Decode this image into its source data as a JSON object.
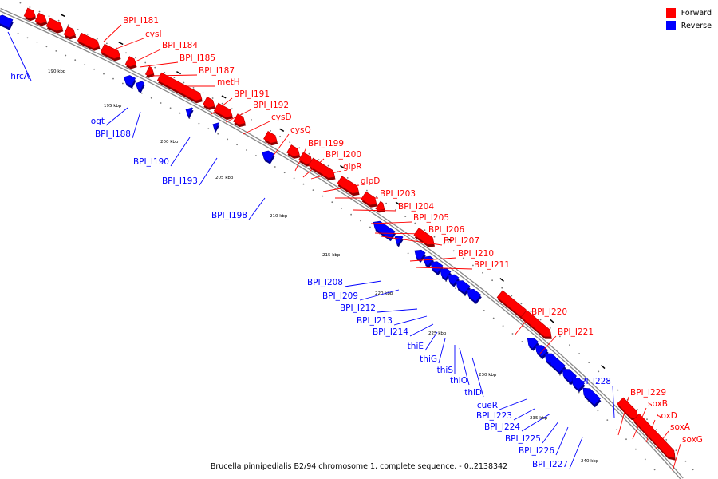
{
  "caption": "Brucella pinnipedialis B2/94 chromosome 1, complete sequence. - 0..2138342",
  "legend": [
    {
      "label": "Forward",
      "color": "#ff0000"
    },
    {
      "label": "Reverse",
      "color": "#0000ff"
    }
  ],
  "colors": {
    "forward": "#ff0000",
    "reverse": "#0000ff",
    "backbone": "#999999"
  },
  "ticks": [
    "190 kbp",
    "195 kbp",
    "200 kbp",
    "205 kbp",
    "210 kbp",
    "215 kbp",
    "220 kbp",
    "225 kbp",
    "230 kbp",
    "235 kbp",
    "240 kbp"
  ],
  "forward_labels": [
    "BPI_I181",
    "cysI",
    "BPI_I184",
    "BPI_I185",
    "BPI_I187",
    "metH",
    "BPI_I191",
    "BPI_I192",
    "cysD",
    "cysQ",
    "BPI_I199",
    "BPI_I200",
    "glpR",
    "glpD",
    "BPI_I203",
    "BPI_I204",
    "BPI_I205",
    "BPI_I206",
    "BPI_I207",
    "BPI_I210",
    "BPI_I211",
    "BPI_I220",
    "BPI_I221",
    "BPI_I229",
    "soxB",
    "soxD",
    "soxA",
    "soxG"
  ],
  "reverse_labels": [
    "hrcA",
    "ogt",
    "BPI_I188",
    "BPI_I190",
    "BPI_I193",
    "BPI_I198",
    "BPI_I208",
    "BPI_I209",
    "BPI_I212",
    "BPI_I213",
    "BPI_I214",
    "thiE",
    "thiG",
    "thiS",
    "thiO",
    "thiD",
    "cueR",
    "BPI_I223",
    "BPI_I224",
    "BPI_I225",
    "BPI_I226",
    "BPI_I227",
    "BPI_I228"
  ]
}
